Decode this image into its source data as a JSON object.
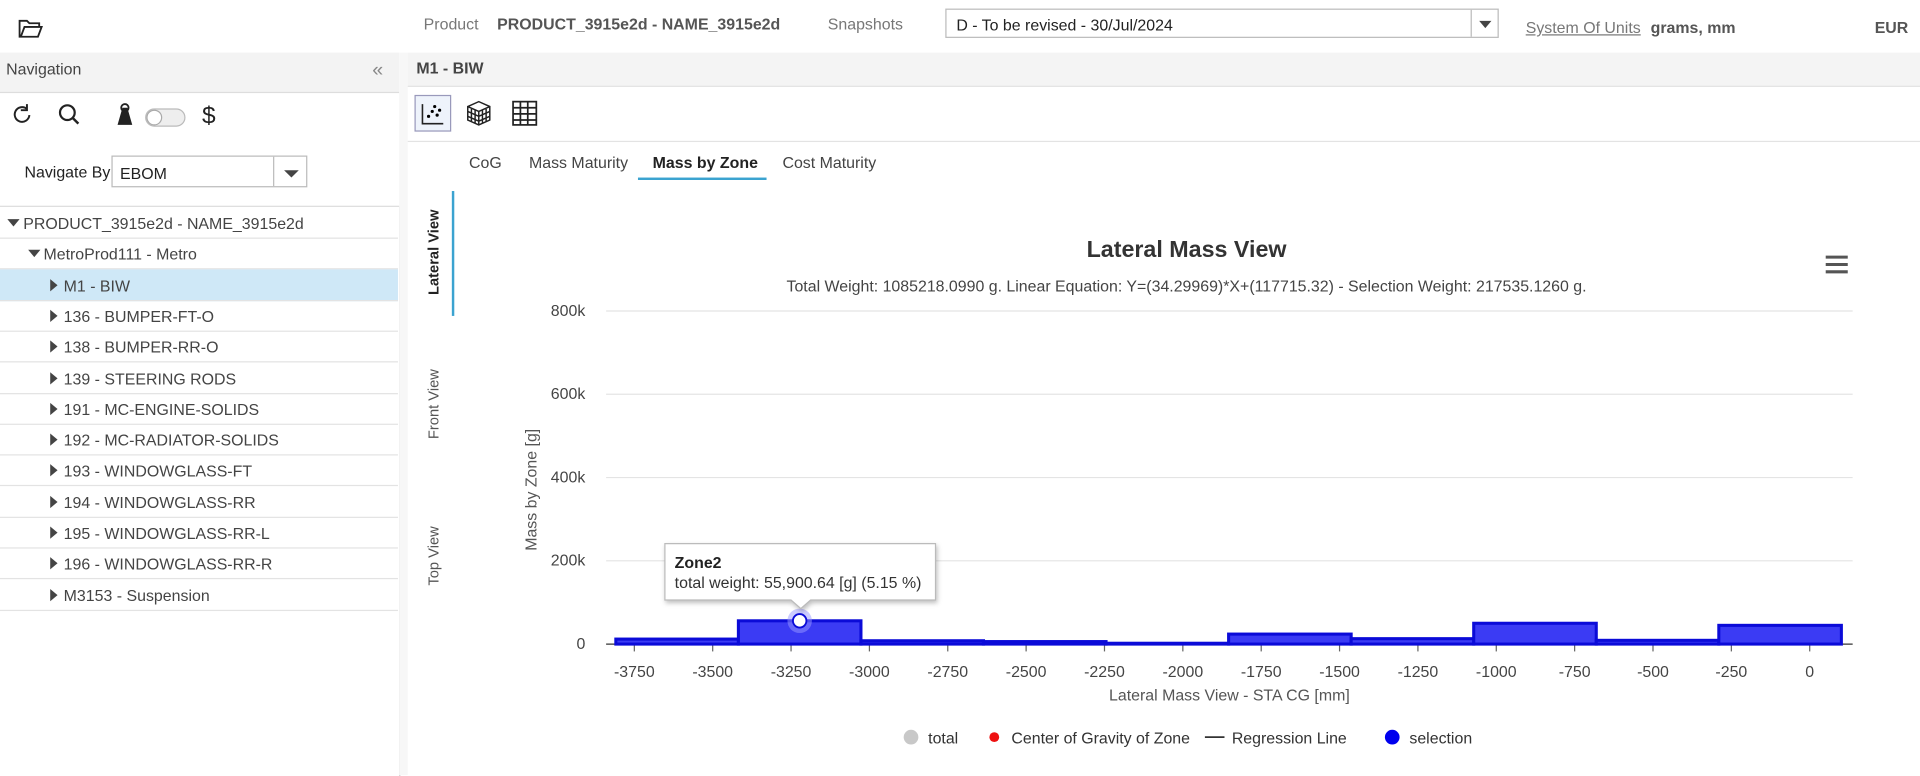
{
  "header": {
    "product_label": "Product",
    "product": "PRODUCT_3915e2d - NAME_3915e2d",
    "snapshots_label": "Snapshots",
    "snapshot": "D - To be revised - 30/Jul/2024",
    "units_label": "System Of Units",
    "units": "grams, mm",
    "currency": "EUR"
  },
  "navigation": {
    "title": "Navigation",
    "navigate_by_label": "Navigate By",
    "navigate_by": "EBOM",
    "tree": [
      {
        "label": "PRODUCT_3915e2d - NAME_3915e2d",
        "level": 0,
        "expanded": true,
        "selected": false
      },
      {
        "label": "MetroProd111 - Metro",
        "level": 1,
        "expanded": true,
        "selected": false
      },
      {
        "label": "M1 - BIW",
        "level": 2,
        "expanded": false,
        "selected": true
      },
      {
        "label": "136 - BUMPER-FT-O",
        "level": 2,
        "expanded": false,
        "selected": false
      },
      {
        "label": "138 - BUMPER-RR-O",
        "level": 2,
        "expanded": false,
        "selected": false
      },
      {
        "label": "139 - STEERING RODS",
        "level": 2,
        "expanded": false,
        "selected": false
      },
      {
        "label": "191 - MC-ENGINE-SOLIDS",
        "level": 2,
        "expanded": false,
        "selected": false
      },
      {
        "label": "192 - MC-RADIATOR-SOLIDS",
        "level": 2,
        "expanded": false,
        "selected": false
      },
      {
        "label": "193 - WINDOWGLASS-FT",
        "level": 2,
        "expanded": false,
        "selected": false
      },
      {
        "label": "194 - WINDOWGLASS-RR",
        "level": 2,
        "expanded": false,
        "selected": false
      },
      {
        "label": "195 - WINDOWGLASS-RR-L",
        "level": 2,
        "expanded": false,
        "selected": false
      },
      {
        "label": "196 - WINDOWGLASS-RR-R",
        "level": 2,
        "expanded": false,
        "selected": false
      },
      {
        "label": "M3153 - Suspension",
        "level": 2,
        "expanded": false,
        "selected": false
      }
    ]
  },
  "panel": {
    "title": "M1 - BIW",
    "tabs": [
      "CoG",
      "Mass Maturity",
      "Mass by Zone",
      "Cost Maturity"
    ],
    "active_tab": 2,
    "views": [
      "Lateral View",
      "Front View",
      "Top View"
    ],
    "active_view": 0
  },
  "chart_data": {
    "type": "histogram",
    "title": "Lateral Mass View",
    "subtitle": "Total Weight: 1085218.0990 g. Linear Equation: Y=(34.29969)*X+(117715.32) - Selection Weight: 217535.1260 g.",
    "x_label": "Lateral Mass View - STA CG [mm]",
    "y_label": "Mass by Zone [g]",
    "bins": [
      -3809,
      -3418,
      -3027,
      -2636,
      -2245,
      -1854,
      -1463,
      -1072,
      -681,
      -290,
      101
    ],
    "values": [
      12000,
      55900.64,
      8000,
      6000,
      2000,
      24000,
      13000,
      50000,
      9000,
      45000
    ],
    "color": "#3b3bf4",
    "edge_color": "#0b0bd8",
    "xlim": [
      -3840,
      137
    ],
    "xticks": [
      -3750,
      -3500,
      -3250,
      -3000,
      -2750,
      -2500,
      -2250,
      -2000,
      -1750,
      -1500,
      -1250,
      -1000,
      -750,
      -500,
      -250,
      0
    ],
    "ylim": [
      0,
      800000
    ],
    "yticks": [
      0,
      {
        "value": 200000,
        "label": "200k"
      },
      {
        "value": 400000,
        "label": "400k"
      },
      {
        "value": 600000,
        "label": "600k"
      },
      {
        "value": 800000,
        "label": "800k"
      }
    ],
    "grid": true,
    "legend": [
      {
        "name": "total",
        "color": "#c8c8c8",
        "symbol": "circle"
      },
      {
        "name": "Center of Gravity of Zone",
        "color": "#ee1111",
        "symbol": "dot"
      },
      {
        "name": "Regression Line",
        "color": "#333333",
        "symbol": "line"
      },
      {
        "name": "selection",
        "color": "#0000ee",
        "symbol": "circle"
      }
    ],
    "tooltip": {
      "zone": "Zone2",
      "text": "total weight: 55,900.64 [g] (5.15 %)",
      "bin": 1
    }
  }
}
